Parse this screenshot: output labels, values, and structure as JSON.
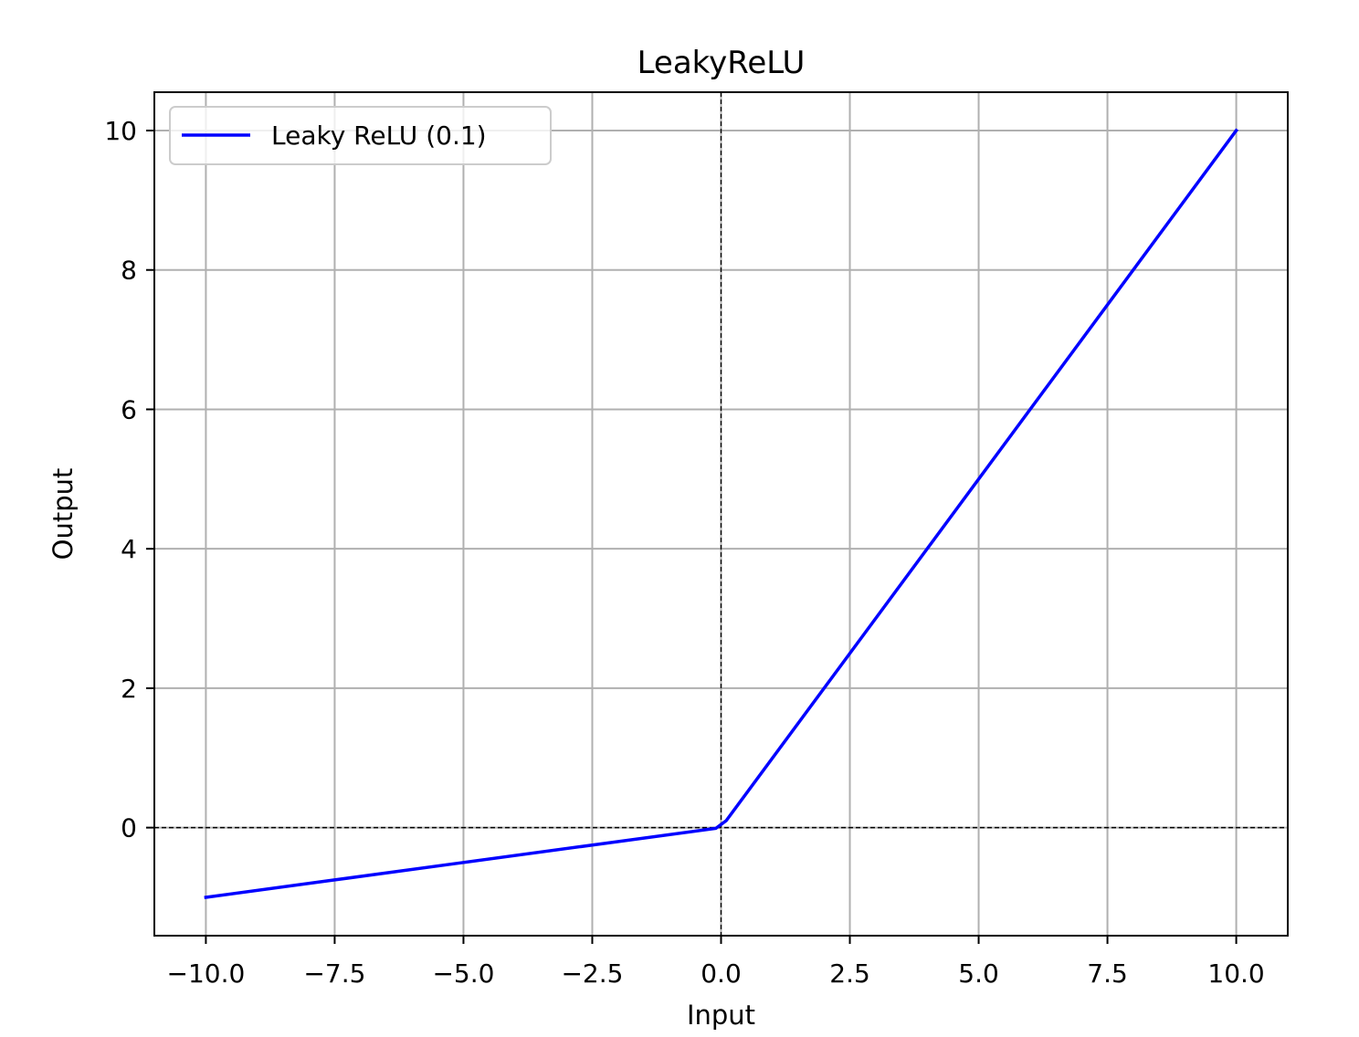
{
  "chart_data": {
    "type": "line",
    "title": "LeakyReLU",
    "xlabel": "Input",
    "ylabel": "Output",
    "xlim": [
      -11.0,
      11.0
    ],
    "ylim": [
      -1.55,
      10.55
    ],
    "x_ticks": [
      -10.0,
      -7.5,
      -5.0,
      -2.5,
      0.0,
      2.5,
      5.0,
      7.5,
      10.0
    ],
    "x_tick_labels": [
      "−10.0",
      "−7.5",
      "−5.0",
      "−2.5",
      "0.0",
      "2.5",
      "5.0",
      "7.5",
      "10.0"
    ],
    "y_ticks": [
      0,
      2,
      4,
      6,
      8,
      10
    ],
    "y_tick_labels": [
      "0",
      "2",
      "4",
      "6",
      "8",
      "10"
    ],
    "grid": true,
    "reference_lines": {
      "x": 0,
      "y": 0,
      "style": "dashed",
      "color": "#000000"
    },
    "legend": {
      "position": "top-left"
    },
    "series": [
      {
        "name": "Leaky ReLU (0.1)",
        "color": "#0000ff",
        "x": [
          -10.0,
          -7.5,
          -5.0,
          -2.5,
          -0.1,
          0.1,
          2.5,
          5.0,
          7.5,
          10.0
        ],
        "y": [
          -1.0,
          -0.75,
          -0.5,
          -0.25,
          -0.01,
          0.1,
          2.5,
          5.0,
          7.5,
          10.0
        ]
      }
    ]
  }
}
